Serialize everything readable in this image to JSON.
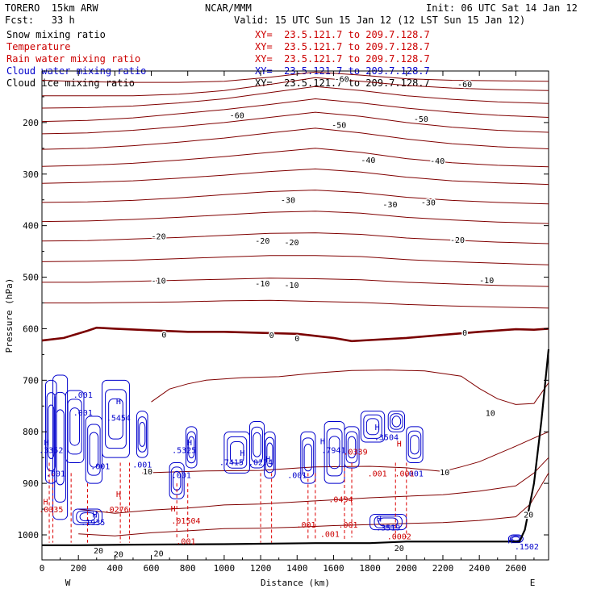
{
  "header": {
    "model": "TORERO  15km ARW",
    "center": "NCAR/MMM",
    "init": "Init: 06 UTC Sat 14 Jan 12",
    "fcst": "Fcst:   33 h",
    "valid": "Valid: 15 UTC Sun 15 Jan 12 (12 LST Sun 15 Jan 12)"
  },
  "legend": [
    {
      "label": "Snow mixing ratio",
      "xy": "XY=  23.5.121.7 to 209.7.128.7",
      "color": "#000000"
    },
    {
      "label": "Temperature",
      "xy": "XY=  23.5.121.7 to 209.7.128.7",
      "color": "#cc0000"
    },
    {
      "label": "Rain water mixing ratio",
      "xy": "XY=  23.5.121.7 to 209.7.128.7",
      "color": "#cc0000"
    },
    {
      "label": "Cloud water mixing ratio",
      "xy": "XY=  23.5.121.7 to 209.7.128.7",
      "color": "#0000cc"
    },
    {
      "label": "Cloud ice mixing ratio",
      "xy": "XY=  23.5.121.7 to 209.7.128.7",
      "color": "#000000"
    }
  ],
  "chart_data": {
    "type": "contour",
    "xlabel": "Distance (km)",
    "ylabel": "Pressure (hPa)",
    "x_end_labels": {
      "left": "W",
      "right": "E"
    },
    "xlim": [
      0,
      2780
    ],
    "ylim": [
      1050,
      100
    ],
    "xticks": [
      0,
      200,
      400,
      600,
      800,
      1000,
      1200,
      1400,
      1600,
      1800,
      2000,
      2200,
      2400,
      2600
    ],
    "yticks": [
      200,
      300,
      400,
      500,
      600,
      700,
      800,
      900,
      1000
    ],
    "colors": {
      "temperature": "#800000",
      "zero_isotherm": "#7a0000",
      "cloud_water": "#0000cc",
      "rain": "#dd0000",
      "terrain": "#000000"
    },
    "temperature_contours": [
      {
        "level": -60,
        "p": [
          118,
          121,
          122,
          122,
          120,
          112,
          102,
          108,
          115,
          118,
          119,
          120
        ]
      },
      {
        "level": -60,
        "p": [
          148,
          148,
          148,
          145,
          138,
          126,
          113,
          120,
          128,
          133,
          136,
          138
        ]
      },
      {
        "level": -60,
        "p": [
          172,
          171,
          168,
          162,
          154,
          142,
          130,
          138,
          148,
          155,
          160,
          163
        ]
      },
      {
        "level": -50,
        "p": [
          198,
          196,
          191,
          183,
          175,
          165,
          154,
          162,
          172,
          180,
          186,
          190
        ]
      },
      {
        "level": -50,
        "p": [
          222,
          220,
          215,
          208,
          200,
          190,
          180,
          188,
          200,
          209,
          215,
          219
        ]
      },
      {
        "level": -40,
        "p": [
          252,
          250,
          245,
          238,
          230,
          220,
          211,
          220,
          232,
          241,
          247,
          251
        ]
      },
      {
        "level": -40,
        "p": [
          285,
          283,
          279,
          273,
          266,
          258,
          250,
          258,
          270,
          278,
          283,
          286
        ]
      },
      {
        "level": -30,
        "p": [
          318,
          316,
          313,
          308,
          302,
          295,
          290,
          296,
          306,
          313,
          317,
          320
        ]
      },
      {
        "level": -30,
        "p": [
          355,
          354,
          351,
          346,
          340,
          334,
          331,
          336,
          345,
          351,
          355,
          358
        ]
      },
      {
        "level": -20,
        "p": [
          392,
          391,
          388,
          384,
          379,
          374,
          372,
          376,
          384,
          389,
          393,
          396
        ]
      },
      {
        "level": -20,
        "p": [
          430,
          429,
          426,
          423,
          419,
          415,
          414,
          417,
          424,
          428,
          432,
          435
        ]
      },
      {
        "level": -10,
        "p": [
          470,
          469,
          467,
          464,
          461,
          458,
          458,
          460,
          466,
          470,
          473,
          476
        ]
      },
      {
        "level": -10,
        "p": [
          510,
          510,
          508,
          506,
          504,
          502,
          503,
          505,
          510,
          513,
          516,
          518
        ]
      },
      {
        "level": -10,
        "p": [
          550,
          550,
          549,
          548,
          546,
          545,
          547,
          549,
          553,
          556,
          558,
          560
        ]
      }
    ],
    "temperature_x": [
      0,
      250,
      500,
      750,
      1000,
      1250,
      1500,
      1750,
      2000,
      2250,
      2500,
      2780
    ],
    "zero_isotherm": {
      "level": 0,
      "x": [
        0,
        120,
        250,
        300,
        400,
        600,
        800,
        1000,
        1200,
        1400,
        1600,
        1700,
        1800,
        2000,
        2200,
        2400,
        2600,
        2700,
        2780
      ],
      "p": [
        623,
        618,
        604,
        598,
        600,
        603,
        606,
        606,
        608,
        610,
        618,
        624,
        622,
        618,
        612,
        606,
        601,
        602,
        600
      ]
    },
    "temperature_labels": [
      {
        "text": "-60",
        "x": 1645,
        "p": 115
      },
      {
        "text": "-60",
        "x": 2320,
        "p": 125
      },
      {
        "text": "-60",
        "x": 1070,
        "p": 185
      },
      {
        "text": "-50",
        "x": 1630,
        "p": 204
      },
      {
        "text": "-50",
        "x": 2080,
        "p": 192
      },
      {
        "text": "-40",
        "x": 1790,
        "p": 272
      },
      {
        "text": "-40",
        "x": 2170,
        "p": 274
      },
      {
        "text": "-30",
        "x": 1350,
        "p": 350
      },
      {
        "text": "-30",
        "x": 1910,
        "p": 358
      },
      {
        "text": "-30",
        "x": 2120,
        "p": 354
      },
      {
        "text": "-20",
        "x": 640,
        "p": 420
      },
      {
        "text": "-20",
        "x": 1210,
        "p": 429
      },
      {
        "text": "-20",
        "x": 1370,
        "p": 432
      },
      {
        "text": "-20",
        "x": 2280,
        "p": 427
      },
      {
        "text": "-10",
        "x": 640,
        "p": 506
      },
      {
        "text": "-10",
        "x": 1210,
        "p": 512
      },
      {
        "text": "-10",
        "x": 1370,
        "p": 515
      },
      {
        "text": "-10",
        "x": 2440,
        "p": 505
      },
      {
        "text": "0",
        "x": 670,
        "p": 611
      },
      {
        "text": "0",
        "x": 1260,
        "p": 612
      },
      {
        "text": "0",
        "x": 1400,
        "p": 618
      },
      {
        "text": "0",
        "x": 2320,
        "p": 607
      },
      {
        "text": "10",
        "x": 2460,
        "p": 763
      },
      {
        "text": "10",
        "x": 2210,
        "p": 878
      },
      {
        "text": "10",
        "x": 580,
        "p": 876
      },
      {
        "text": "20",
        "x": 310,
        "p": 1030
      },
      {
        "text": "20",
        "x": 420,
        "p": 1037
      },
      {
        "text": "20",
        "x": 640,
        "p": 1035
      },
      {
        "text": "20",
        "x": 1960,
        "p": 1025
      },
      {
        "text": "20",
        "x": 2670,
        "p": 960
      }
    ],
    "warm_contours": [
      {
        "level": 10,
        "x": [
          600,
          700,
          800,
          900,
          1100,
          1300,
          1500,
          1700,
          1900,
          2100,
          2300,
          2400,
          2500,
          2600,
          2700,
          2780
        ],
        "p": [
          742,
          717,
          707,
          700,
          695,
          693,
          686,
          681,
          680,
          682,
          692,
          716,
          736,
          747,
          745,
          705
        ]
      },
      {
        "level": 10,
        "x": [
          550,
          700,
          900,
          1200,
          1500,
          1800,
          2000,
          2200,
          2300,
          2400,
          2500,
          2600,
          2700,
          2780
        ],
        "p": [
          880,
          878,
          876,
          875,
          868,
          867,
          870,
          877,
          868,
          858,
          843,
          828,
          812,
          800
        ]
      },
      {
        "level": 15,
        "x": [
          200,
          400,
          600,
          800,
          1000,
          1200,
          1400,
          1600,
          1800,
          2000,
          2200,
          2400,
          2600,
          2700,
          2780
        ],
        "p": [
          950,
          958,
          952,
          948,
          942,
          940,
          936,
          932,
          928,
          925,
          922,
          915,
          905,
          880,
          850
        ]
      },
      {
        "level": 20,
        "x": [
          200,
          400,
          600,
          800,
          1000,
          1200,
          1400,
          1600,
          1800,
          2000,
          2200,
          2400,
          2600,
          2680,
          2780
        ],
        "p": [
          998,
          1002,
          996,
          992,
          988,
          987,
          985,
          982,
          980,
          978,
          976,
          972,
          965,
          940,
          880
        ]
      }
    ],
    "terrain": {
      "x": [
        0,
        200,
        500,
        1000,
        1500,
        1800,
        2000,
        2300,
        2500,
        2620,
        2650,
        2700,
        2740,
        2780
      ],
      "p": [
        1020,
        1020,
        1019,
        1018,
        1016,
        1016,
        1013,
        1013,
        1013,
        1013,
        990,
        900,
        780,
        640
      ]
    },
    "cloud_water_labels": [
      {
        "text": ".001",
        "x": 225,
        "p": 728
      },
      {
        "text": ".001",
        "x": 225,
        "p": 762
      },
      {
        "text": ".001",
        "x": 320,
        "p": 866
      },
      {
        "text": ".001",
        "x": 550,
        "p": 863
      },
      {
        "text": ".001",
        "x": 765,
        "p": 883
      },
      {
        "text": ".001",
        "x": 1400,
        "p": 883
      },
      {
        "text": ".001",
        "x": 75,
        "p": 880
      },
      {
        "text": ".5454",
        "x": 420,
        "p": 772
      },
      {
        "text": ".5325",
        "x": 780,
        "p": 835
      },
      {
        "text": ".7415",
        "x": 1040,
        "p": 858
      },
      {
        "text": ".0274",
        "x": 1200,
        "p": 858
      },
      {
        "text": ".7941",
        "x": 1600,
        "p": 835
      },
      {
        "text": ".3504",
        "x": 1890,
        "p": 810
      },
      {
        "text": ".3519",
        "x": 1900,
        "p": 985
      },
      {
        "text": ".1935",
        "x": 280,
        "p": 975
      },
      {
        "text": ".1502",
        "x": 2660,
        "p": 1022
      },
      {
        "text": ".3352",
        "x": 50,
        "p": 835
      },
      {
        "text": ".001",
        "x": 2040,
        "p": 880
      }
    ],
    "rain_labels": [
      {
        "text": ".0335",
        "x": 50,
        "p": 950
      },
      {
        "text": ".0276",
        "x": 410,
        "p": 950
      },
      {
        "text": ".01504",
        "x": 790,
        "p": 972
      },
      {
        "text": ".001",
        "x": 790,
        "p": 1012
      },
      {
        "text": ".0494",
        "x": 1640,
        "p": 930
      },
      {
        "text": ".0339",
        "x": 1720,
        "p": 838
      },
      {
        "text": ".001",
        "x": 1840,
        "p": 880
      },
      {
        "text": ".001",
        "x": 1990,
        "p": 880
      },
      {
        "text": ".001",
        "x": 1450,
        "p": 980
      },
      {
        "text": ".001",
        "x": 1680,
        "p": 980
      },
      {
        "text": ".001",
        "x": 1580,
        "p": 998
      },
      {
        "text": ".0002",
        "x": 1960,
        "p": 1002
      }
    ],
    "h_markers": [
      {
        "x": 25,
        "p": 820,
        "color": "#0000cc"
      },
      {
        "x": 20,
        "p": 935,
        "color": "#cc0000"
      },
      {
        "x": 420,
        "p": 740,
        "color": "#0000cc"
      },
      {
        "x": 420,
        "p": 920,
        "color": "#cc0000"
      },
      {
        "x": 290,
        "p": 960,
        "color": "#0000cc"
      },
      {
        "x": 810,
        "p": 820,
        "color": "#0000cc"
      },
      {
        "x": 720,
        "p": 948,
        "color": "#cc0000"
      },
      {
        "x": 1100,
        "p": 840,
        "color": "#0000cc"
      },
      {
        "x": 1240,
        "p": 852,
        "color": "#0000cc"
      },
      {
        "x": 1540,
        "p": 818,
        "color": "#0000cc"
      },
      {
        "x": 1840,
        "p": 790,
        "color": "#0000cc"
      },
      {
        "x": 1960,
        "p": 822,
        "color": "#cc0000"
      },
      {
        "x": 1850,
        "p": 968,
        "color": "#0000cc"
      },
      {
        "x": 2570,
        "p": 1010,
        "color": "#0000cc"
      }
    ],
    "grid": false
  }
}
